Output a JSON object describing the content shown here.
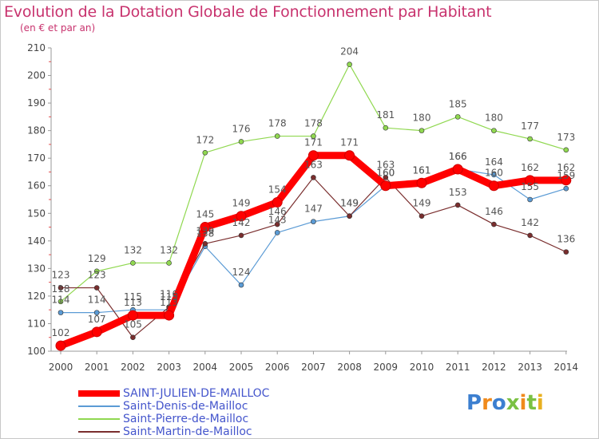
{
  "header": {
    "title": "Evolution de la Dotation Globale de Fonctionnement par Habitant",
    "subtitle": "(en € et par an)"
  },
  "logo": {
    "text": "Proxiti",
    "colors": [
      "#3c7fd0",
      "#f08a1c",
      "#3c7fd0",
      "#7ac143",
      "#f08a1c",
      "#7ac143",
      "#e8b020"
    ]
  },
  "chart_data": {
    "type": "line",
    "x": [
      2000,
      2001,
      2002,
      2003,
      2004,
      2005,
      2006,
      2007,
      2008,
      2009,
      2010,
      2011,
      2012,
      2013,
      2014
    ],
    "ylim": [
      100,
      210
    ],
    "yticks": [
      100,
      110,
      120,
      130,
      140,
      150,
      160,
      170,
      180,
      190,
      200,
      210
    ],
    "grid": false,
    "legend_position": "bottom-left",
    "series": [
      {
        "name": "SAINT-JULIEN-DE-MAILLOC",
        "color": "#ff0000",
        "values": [
          102,
          107,
          113,
          113,
          145,
          149,
          154,
          171,
          171,
          160,
          161,
          166,
          160,
          162,
          162
        ]
      },
      {
        "name": "Saint-Denis-de-Mailloc",
        "color": "#5b9bd5",
        "values": [
          114,
          114,
          115,
          115,
          138,
          124,
          143,
          147,
          149,
          160,
          161,
          166,
          164,
          155,
          159
        ]
      },
      {
        "name": "Saint-Pierre-de-Mailloc",
        "color": "#90d850",
        "values": [
          118,
          129,
          132,
          132,
          172,
          176,
          178,
          178,
          204,
          181,
          180,
          185,
          180,
          177,
          173
        ]
      },
      {
        "name": "Saint-Martin-de-Mailloc",
        "color": "#7a2e2e",
        "values": [
          123,
          123,
          105,
          116,
          139,
          142,
          146,
          163,
          149,
          163,
          149,
          153,
          146,
          142,
          136
        ]
      }
    ]
  }
}
